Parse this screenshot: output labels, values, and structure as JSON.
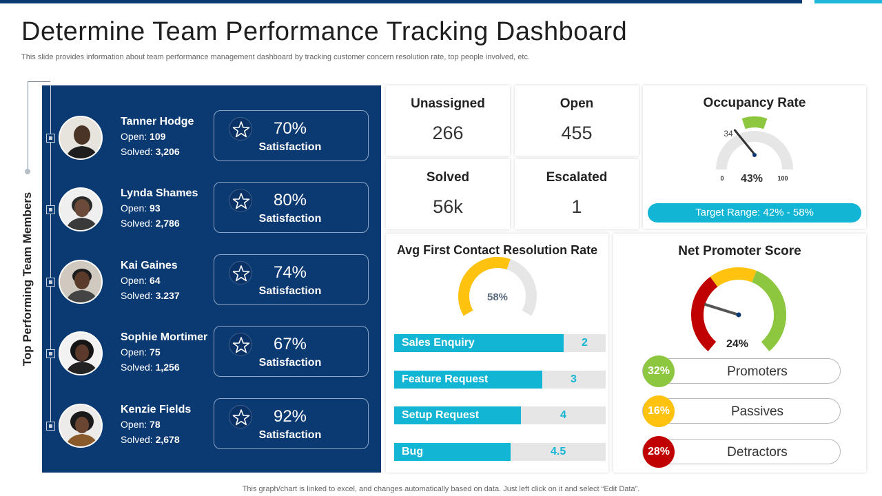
{
  "header": {
    "title": "Determine Team Performance Tracking Dashboard",
    "subtitle": "This slide provides information about team performance management dashboard by tracking customer concern resolution rate, top people involved, etc."
  },
  "footer": {
    "note": "This graph/chart is linked to excel,  and changes automatically based on data. Just left click on it and select “Edit Data”."
  },
  "team": {
    "rail_label": "Top Performing Team Members",
    "open_label": "Open: ",
    "solved_label": "Solved: ",
    "satisfaction_label": "Satisfaction",
    "members": [
      {
        "name": "Tanner Hodge",
        "open": "109",
        "solved": "3,206",
        "satisfaction": "70%"
      },
      {
        "name": "Lynda Shames",
        "open": "93",
        "solved": "2,786",
        "satisfaction": "80%"
      },
      {
        "name": "Kai Gaines",
        "open": "64",
        "solved": "3.237",
        "satisfaction": "74%"
      },
      {
        "name": "Sophie Mortimer",
        "open": "75",
        "solved": "1,256",
        "satisfaction": "67%"
      },
      {
        "name": "Kenzie Fields",
        "open": "78",
        "solved": "2,678",
        "satisfaction": "92%"
      }
    ]
  },
  "stats": {
    "unassigned": {
      "label": "Unassigned",
      "value": "266"
    },
    "open": {
      "label": "Open",
      "value": "455"
    },
    "solved": {
      "label": "Solved",
      "value": "56k"
    },
    "escalated": {
      "label": "Escalated",
      "value": "1"
    }
  },
  "occupancy": {
    "title": "Occupancy Rate",
    "value_label": "43%",
    "value": 43,
    "needle_label": "34",
    "needle_value": 34,
    "min_label": "0",
    "max_label": "100",
    "target_min": 42,
    "target_max": 58,
    "target_text": "Target Range: 42% - 58%"
  },
  "resolution": {
    "title": "Avg First Contact Resolution Rate",
    "rate_label": "58%",
    "rate": 58,
    "rows": [
      {
        "label": "Sales Enquiry",
        "value": "2",
        "fill": 0.8
      },
      {
        "label": "Feature Request",
        "value": "3",
        "fill": 0.7
      },
      {
        "label": "Setup Request",
        "value": "4",
        "fill": 0.6
      },
      {
        "label": "Bug",
        "value": "4.5",
        "fill": 0.55
      }
    ]
  },
  "nps": {
    "title": "Net Promoter Score",
    "value_label": "24%",
    "value": 24,
    "promoters": {
      "pct": "32%",
      "label": "Promoters"
    },
    "passives": {
      "pct": "16%",
      "label": "Passives"
    },
    "detractors": {
      "pct": "28%",
      "label": "Detractors"
    }
  },
  "colors": {
    "navy": "#0b3a73",
    "cyan": "#12b5d3",
    "green": "#8dc63f",
    "yellow": "#ffc20e",
    "red": "#c00000",
    "track": "#e6e6e6"
  }
}
